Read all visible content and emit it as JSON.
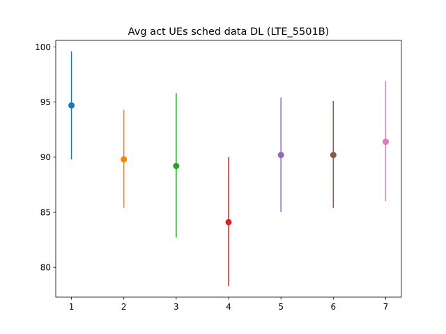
{
  "chart_data": {
    "type": "errorbar",
    "title": "Avg act UEs sched data DL (LTE_5501B)",
    "xlabel": "",
    "ylabel": "",
    "xlim": [
      0.7,
      7.3
    ],
    "ylim": [
      77.3,
      100.6
    ],
    "xticks": [
      1,
      2,
      3,
      4,
      5,
      6,
      7
    ],
    "yticks": [
      80,
      85,
      90,
      95,
      100
    ],
    "grid": false,
    "series": [
      {
        "x": 1,
        "y": 94.7,
        "low": 89.8,
        "high": 99.6,
        "color": "#1f77b4"
      },
      {
        "x": 2,
        "y": 89.8,
        "low": 85.4,
        "high": 94.3,
        "color": "#ff7f0e"
      },
      {
        "x": 3,
        "y": 89.2,
        "low": 82.7,
        "high": 95.8,
        "color": "#2ca02c"
      },
      {
        "x": 4,
        "y": 84.1,
        "low": 78.3,
        "high": 90.0,
        "color": "#d62728"
      },
      {
        "x": 5,
        "y": 90.2,
        "low": 85.0,
        "high": 95.4,
        "color": "#9467bd"
      },
      {
        "x": 6,
        "y": 90.2,
        "low": 85.4,
        "high": 95.1,
        "color": "#8c564b"
      },
      {
        "x": 7,
        "y": 91.4,
        "low": 86.0,
        "high": 96.9,
        "color": "#e377c2"
      }
    ]
  }
}
